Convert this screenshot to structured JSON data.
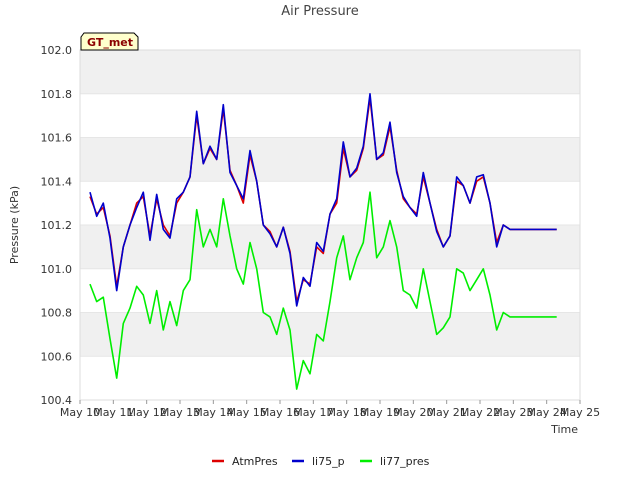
{
  "chart_data": {
    "type": "line",
    "title": "Air Pressure",
    "xlabel": "Time",
    "ylabel": "Pressure (kPa)",
    "badge": "GT_met",
    "x_tick_labels": [
      "May 10",
      "May 11",
      "May 12",
      "May 13",
      "May 14",
      "May 15",
      "May 16",
      "May 17",
      "May 18",
      "May 19",
      "May 20",
      "May 21",
      "May 22",
      "May 23",
      "May 24",
      "May 25"
    ],
    "xlim": [
      0,
      15
    ],
    "ylim": [
      100.4,
      102.0
    ],
    "y_ticks": [
      100.4,
      100.6,
      100.8,
      101.0,
      101.2,
      101.4,
      101.6,
      101.8,
      102.0
    ],
    "y_tick_labels": [
      "100.4",
      "100.6",
      "100.8",
      "101.0",
      "101.2",
      "101.4",
      "101.6",
      "101.8",
      "102.0"
    ],
    "grid": "horizontal bands",
    "legend_position": "bottom",
    "x": [
      0.3,
      0.5,
      0.7,
      0.9,
      1.1,
      1.3,
      1.5,
      1.7,
      1.9,
      2.1,
      2.3,
      2.5,
      2.7,
      2.9,
      3.1,
      3.3,
      3.5,
      3.7,
      3.9,
      4.1,
      4.3,
      4.5,
      4.7,
      4.9,
      5.1,
      5.3,
      5.5,
      5.7,
      5.9,
      6.1,
      6.3,
      6.5,
      6.7,
      6.9,
      7.1,
      7.3,
      7.5,
      7.7,
      7.9,
      8.1,
      8.3,
      8.5,
      8.7,
      8.9,
      9.1,
      9.3,
      9.5,
      9.7,
      9.9,
      10.1,
      10.3,
      10.5,
      10.7,
      10.9,
      11.1,
      11.3,
      11.5,
      11.7,
      11.9,
      12.1,
      12.3,
      12.5,
      12.7,
      12.9,
      13.1,
      13.3,
      13.5,
      13.7,
      13.9,
      14.1,
      14.3
    ],
    "series": [
      {
        "name": "AtmPres",
        "color": "#dd0000",
        "values": [
          101.33,
          101.25,
          101.28,
          101.15,
          100.92,
          101.1,
          101.2,
          101.3,
          101.33,
          101.15,
          101.32,
          101.2,
          101.15,
          101.3,
          101.35,
          101.42,
          101.7,
          101.48,
          101.55,
          101.5,
          101.73,
          101.45,
          101.38,
          101.3,
          101.52,
          101.4,
          101.2,
          101.17,
          101.1,
          101.19,
          101.08,
          100.85,
          100.95,
          100.93,
          101.1,
          101.07,
          101.25,
          101.3,
          101.55,
          101.42,
          101.45,
          101.55,
          101.78,
          101.5,
          101.52,
          101.65,
          101.45,
          101.32,
          101.28,
          101.25,
          101.42,
          101.3,
          101.18,
          101.1,
          101.15,
          101.4,
          101.38,
          101.3,
          101.4,
          101.42,
          101.3,
          101.12,
          101.2,
          101.18,
          101.18,
          101.18,
          101.18,
          101.18,
          101.18,
          101.18,
          101.18
        ]
      },
      {
        "name": "li75_p",
        "color": "#0000cc",
        "values": [
          101.35,
          101.24,
          101.3,
          101.14,
          100.9,
          101.1,
          101.2,
          101.28,
          101.35,
          101.13,
          101.34,
          101.18,
          101.14,
          101.32,
          101.35,
          101.42,
          101.72,
          101.48,
          101.56,
          101.5,
          101.75,
          101.44,
          101.38,
          101.32,
          101.54,
          101.4,
          101.2,
          101.16,
          101.1,
          101.19,
          101.07,
          100.83,
          100.96,
          100.92,
          101.12,
          101.08,
          101.25,
          101.32,
          101.58,
          101.42,
          101.46,
          101.56,
          101.8,
          101.5,
          101.53,
          101.67,
          101.44,
          101.33,
          101.28,
          101.24,
          101.44,
          101.3,
          101.17,
          101.1,
          101.15,
          101.42,
          101.38,
          101.3,
          101.42,
          101.43,
          101.3,
          101.1,
          101.2,
          101.18,
          101.18,
          101.18,
          101.18,
          101.18,
          101.18,
          101.18,
          101.18
        ]
      },
      {
        "name": "li77_pres",
        "color": "#00ee00",
        "values": [
          100.93,
          100.85,
          100.87,
          100.68,
          100.5,
          100.75,
          100.82,
          100.92,
          100.88,
          100.75,
          100.9,
          100.72,
          100.85,
          100.74,
          100.9,
          100.95,
          101.27,
          101.1,
          101.18,
          101.1,
          101.32,
          101.15,
          101.0,
          100.93,
          101.12,
          101.0,
          100.8,
          100.78,
          100.7,
          100.82,
          100.72,
          100.45,
          100.58,
          100.52,
          100.7,
          100.67,
          100.85,
          101.05,
          101.15,
          100.95,
          101.05,
          101.12,
          101.35,
          101.05,
          101.1,
          101.22,
          101.1,
          100.9,
          100.88,
          100.82,
          101.0,
          100.85,
          100.7,
          100.73,
          100.78,
          101.0,
          100.98,
          100.9,
          100.95,
          101.0,
          100.88,
          100.72,
          100.8,
          100.78,
          100.78,
          100.78,
          100.78,
          100.78,
          100.78,
          100.78,
          100.78
        ]
      }
    ]
  }
}
